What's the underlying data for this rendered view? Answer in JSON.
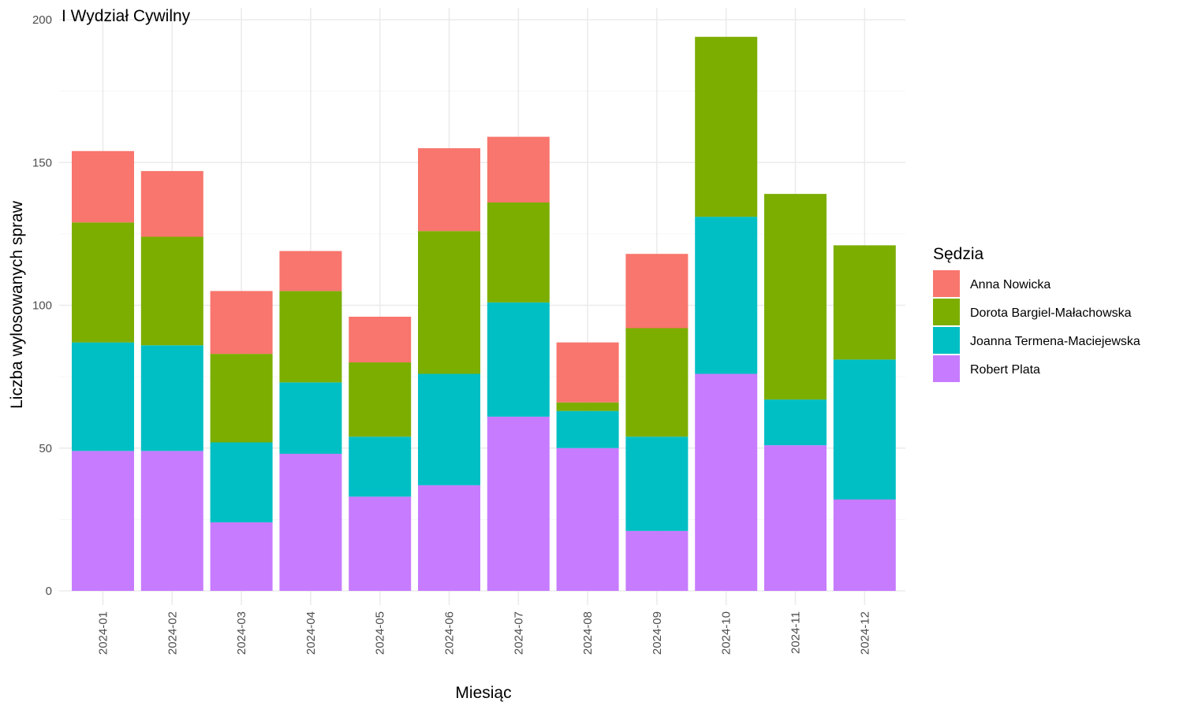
{
  "chart_data": {
    "type": "bar",
    "stacked": true,
    "title": "I Wydział Cywilny",
    "xlabel": "Miesiąc",
    "ylabel": "Liczba wylosowanych spraw",
    "ylim": [
      0,
      200
    ],
    "yticks": [
      0,
      50,
      100,
      150,
      200
    ],
    "grid": true,
    "legend_title": "Sędzia",
    "legend_position": "right",
    "categories": [
      "2024-01",
      "2024-02",
      "2024-03",
      "2024-04",
      "2024-05",
      "2024-06",
      "2024-07",
      "2024-08",
      "2024-09",
      "2024-10",
      "2024-11",
      "2024-12"
    ],
    "series": [
      {
        "name": "Robert Plata",
        "color": "#C77CFF",
        "values": [
          49,
          49,
          24,
          48,
          33,
          37,
          61,
          50,
          21,
          76,
          51,
          32
        ]
      },
      {
        "name": "Joanna Termena-Maciejewska",
        "color": "#00BFC4",
        "values": [
          38,
          37,
          28,
          25,
          21,
          39,
          40,
          13,
          33,
          55,
          16,
          49
        ]
      },
      {
        "name": "Dorota Bargiel-Małachowska",
        "color": "#7CAE00",
        "values": [
          42,
          38,
          31,
          32,
          26,
          50,
          35,
          3,
          38,
          63,
          72,
          40
        ]
      },
      {
        "name": "Anna Nowicka",
        "color": "#F8766D",
        "values": [
          25,
          23,
          22,
          14,
          16,
          29,
          23,
          21,
          26,
          0,
          0,
          0
        ]
      }
    ],
    "legend_order": [
      "Anna Nowicka",
      "Dorota Bargiel-Małachowska",
      "Joanna Termena-Maciejewska",
      "Robert Plata"
    ]
  }
}
